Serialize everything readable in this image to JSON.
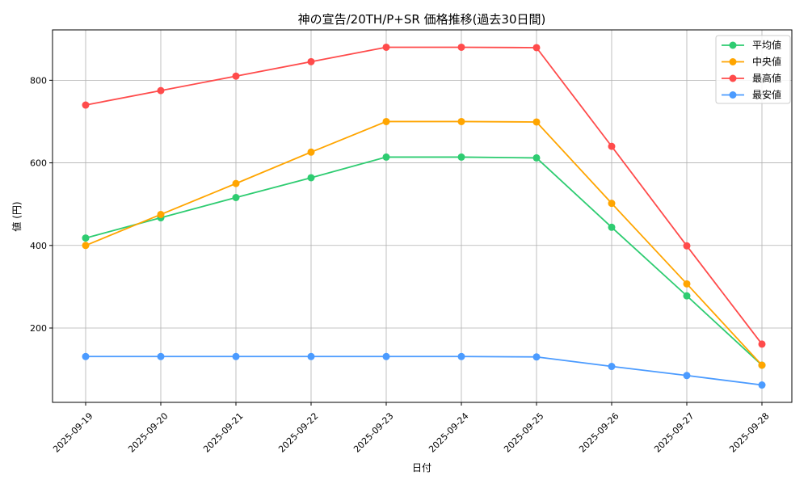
{
  "chart_data": {
    "type": "line",
    "title": "神の宣告/20TH/P+SR 価格推移(過去30日間)",
    "xlabel": "日付",
    "ylabel": "値 (円)",
    "x": [
      "2025-09-19",
      "2025-09-20",
      "2025-09-21",
      "2025-09-22",
      "2025-09-23",
      "2025-09-24",
      "2025-09-25",
      "2025-09-26",
      "2025-09-27",
      "2025-09-28"
    ],
    "ylim": [
      20,
      922
    ],
    "yticks": [
      200,
      400,
      600,
      800
    ],
    "grid": true,
    "legend_position": "top-right",
    "series": [
      {
        "name": "平均値",
        "color": "#2ecc71",
        "values": [
          418,
          467,
          516,
          564,
          614,
          614,
          612,
          444,
          278,
          110
        ]
      },
      {
        "name": "中央値",
        "color": "#ffa500",
        "values": [
          400,
          475,
          550,
          626,
          700,
          700,
          699,
          502,
          307,
          110
        ]
      },
      {
        "name": "最高値",
        "color": "#ff4b4b",
        "values": [
          740,
          775,
          810,
          845,
          880,
          880,
          879,
          640,
          399,
          161
        ]
      },
      {
        "name": "最安値",
        "color": "#4b9bff",
        "values": [
          131,
          131,
          131,
          131,
          131,
          131,
          130,
          107,
          85,
          62
        ]
      }
    ]
  }
}
